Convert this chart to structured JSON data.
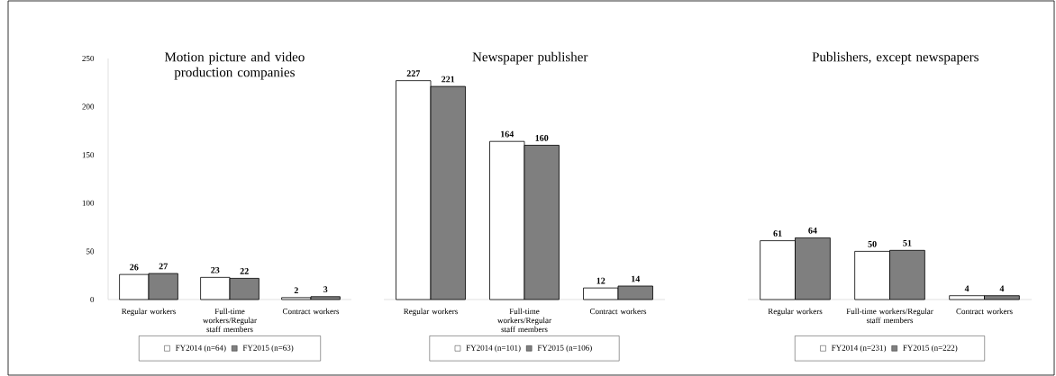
{
  "chart_data": [
    {
      "type": "bar",
      "title": "Motion picture and video production companies",
      "categories": [
        "Regular workers",
        "Full-time workers/Regular staff members",
        "Contract workers"
      ],
      "series": [
        {
          "name": "FY2014 (n=64)",
          "color": "#ffffff",
          "values": [
            26,
            23,
            2
          ]
        },
        {
          "name": "FY2015 (n=63)",
          "color": "#7f7f7f",
          "values": [
            27,
            22,
            3
          ]
        }
      ],
      "ylim": [
        0,
        250
      ],
      "yticks": [
        0,
        50,
        100,
        150,
        200,
        250
      ],
      "data_labels": true,
      "legend": "bottom",
      "grid": false
    },
    {
      "type": "bar",
      "title": "Newspaper publisher",
      "categories": [
        "Regular workers",
        "Full-time workers/Regular staff members",
        "Contract workers"
      ],
      "series": [
        {
          "name": "FY2014 (n=101)",
          "color": "#ffffff",
          "values": [
            227,
            164,
            12
          ]
        },
        {
          "name": "FY2015 (n=106)",
          "color": "#7f7f7f",
          "values": [
            221,
            160,
            14
          ]
        }
      ],
      "ylim": [
        0,
        250
      ],
      "tick_labels": "x",
      "data_labels": true,
      "legend": "bottom",
      "grid": false
    },
    {
      "type": "bar",
      "title": "Publishers, except newspapers",
      "categories": [
        "Regular workers",
        "Full-time workers/Regular staff members",
        "Contract workers"
      ],
      "series": [
        {
          "name": "FY2014 (n=231)",
          "color": "#ffffff",
          "values": [
            61,
            50,
            4
          ]
        },
        {
          "name": "FY2015 (n=222)",
          "color": "#7f7f7f",
          "values": [
            64,
            51,
            4
          ]
        }
      ],
      "ylim": [
        0,
        250
      ],
      "tick_labels": "x",
      "data_labels": true,
      "legend": "bottom",
      "grid": false
    }
  ]
}
